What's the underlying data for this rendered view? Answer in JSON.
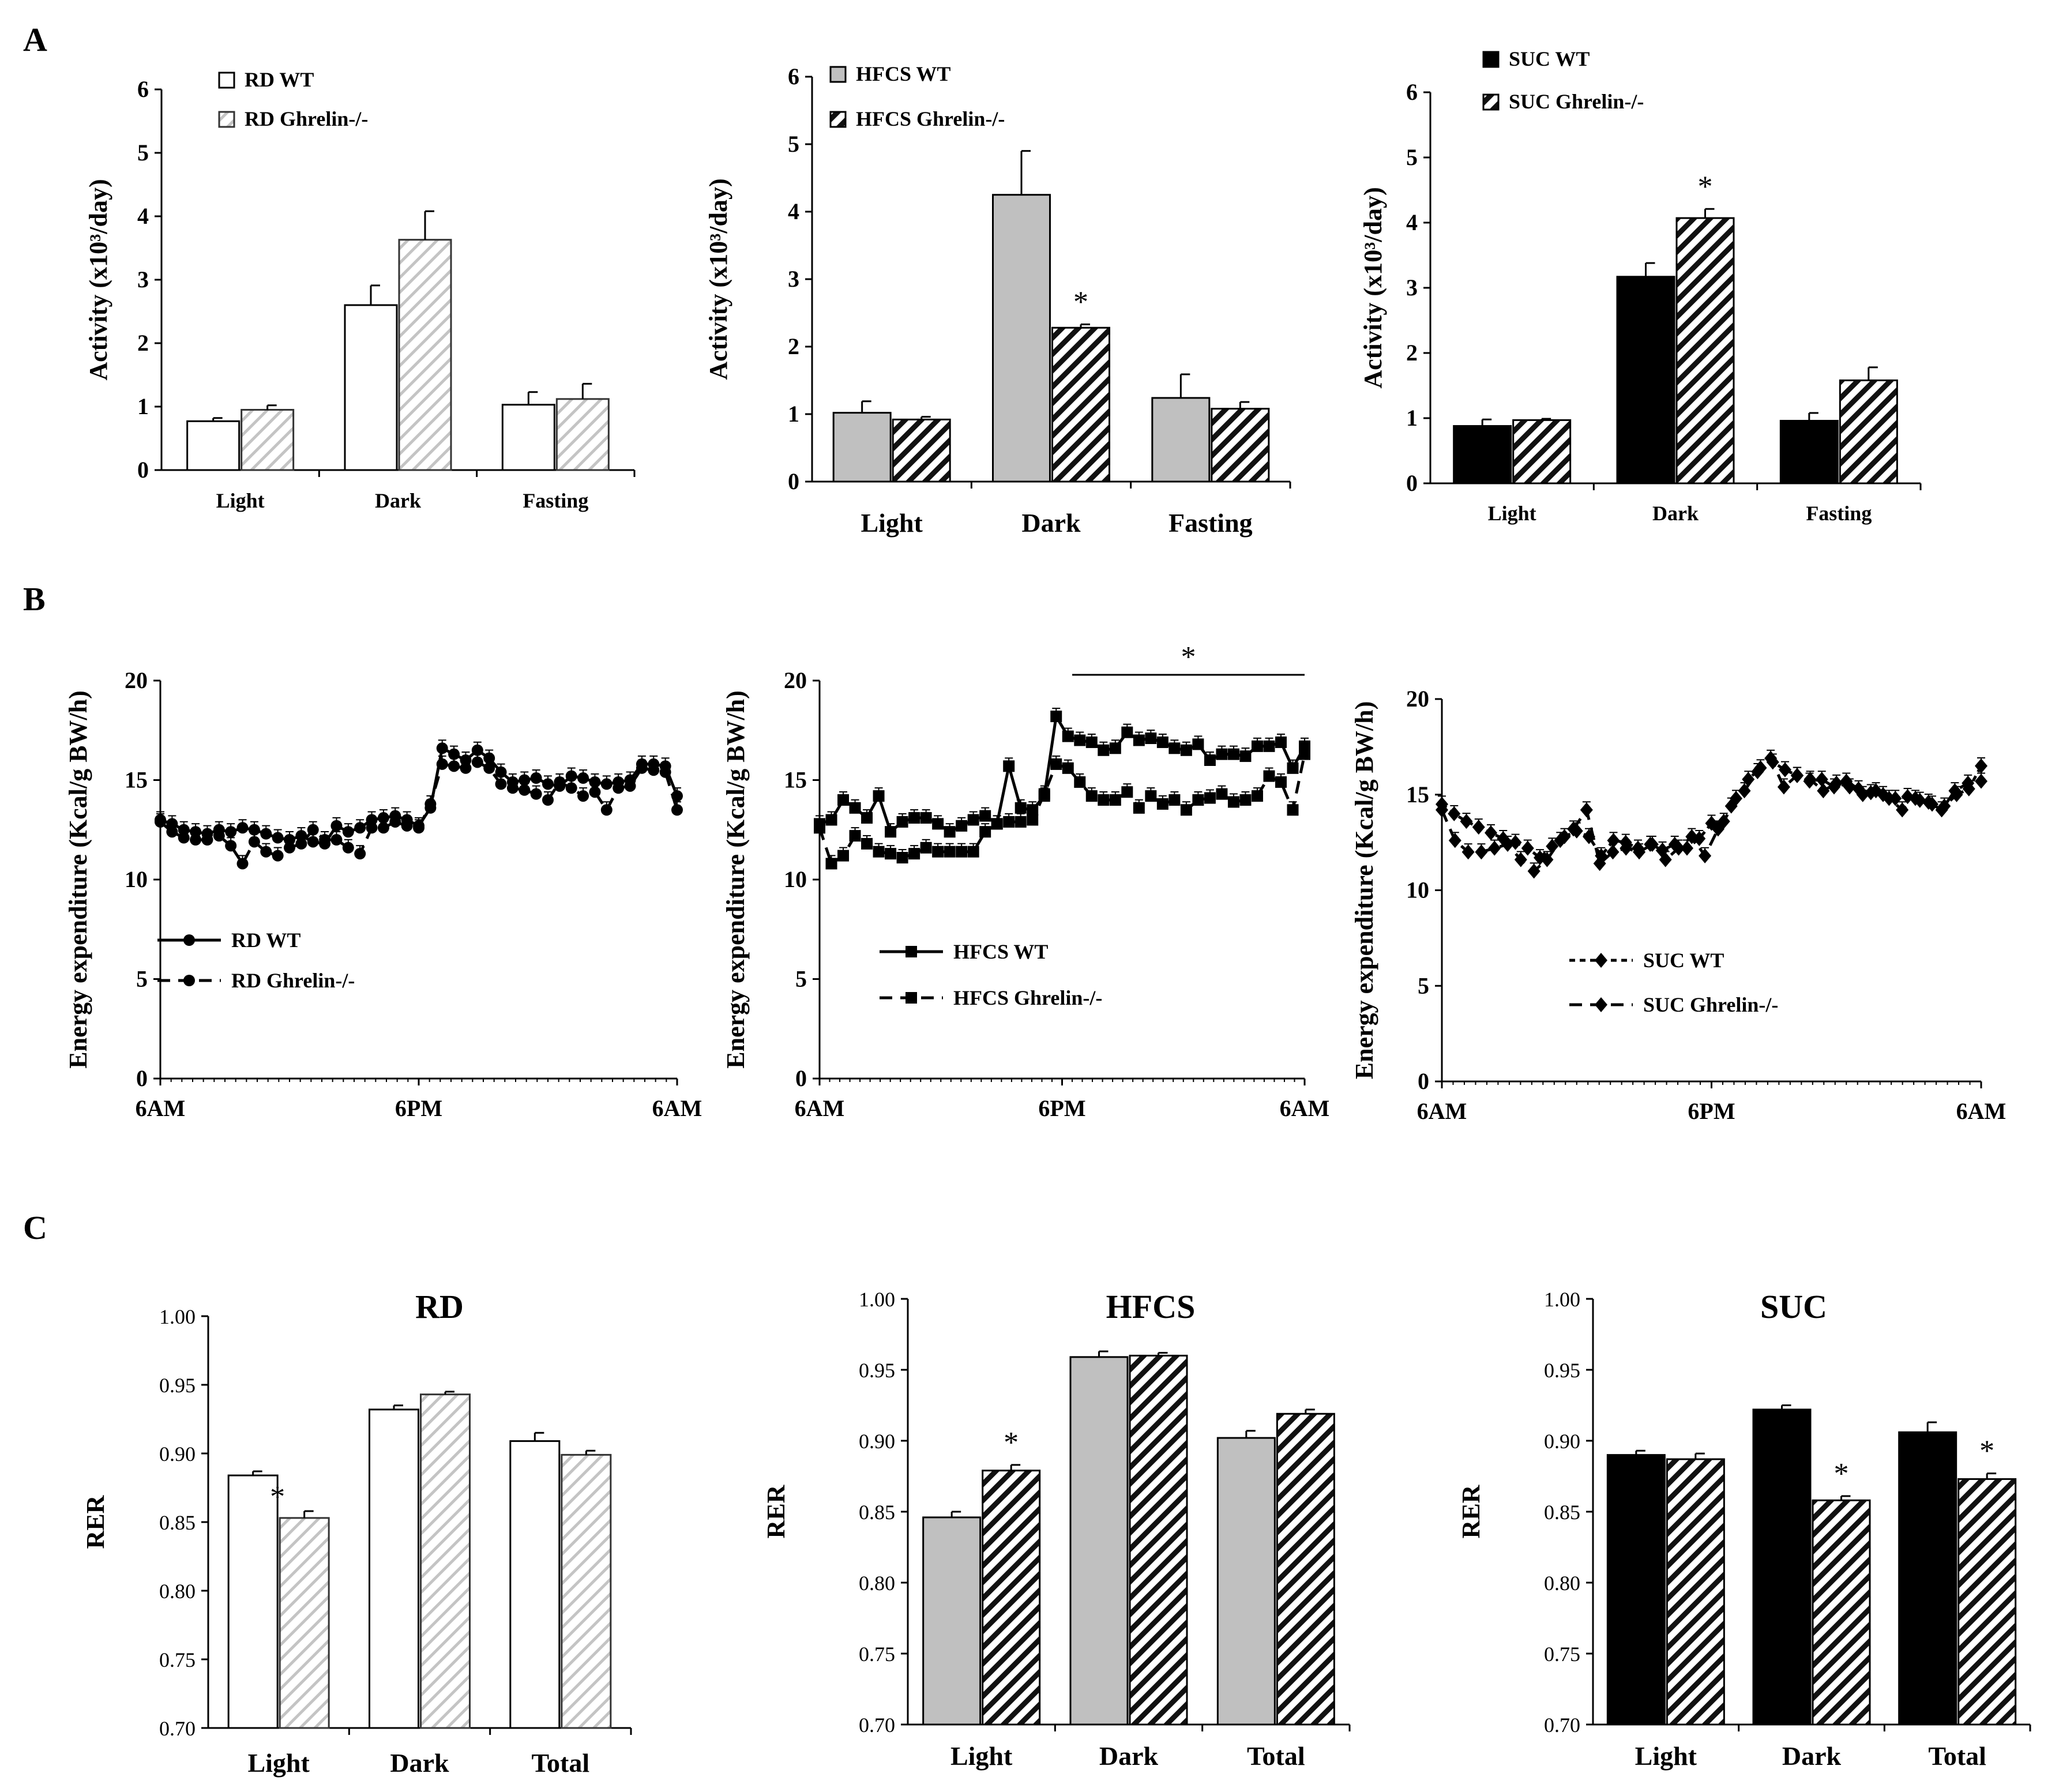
{
  "figure": {
    "panel_letters": [
      "A",
      "B",
      "C"
    ]
  },
  "chart_data": [
    {
      "id": "A1",
      "panel": "A",
      "type": "bar",
      "title": "",
      "xlabel": "",
      "ylabel": "Activity (x10³/day)",
      "ylim": [
        0,
        6
      ],
      "yticks": [
        "0",
        "1",
        "2",
        "3",
        "4",
        "5",
        "6"
      ],
      "categories": [
        "Light",
        "Dark",
        "Fasting"
      ],
      "series": [
        {
          "name": "RD WT",
          "style": "white",
          "values": [
            0.77,
            2.6,
            1.03
          ],
          "errors": [
            0.05,
            0.31,
            0.2
          ]
        },
        {
          "name": "RD Ghrelin-/-",
          "style": "lighthatch",
          "values": [
            0.95,
            3.63,
            1.12
          ],
          "errors": [
            0.07,
            0.45,
            0.24
          ]
        }
      ],
      "significance": [],
      "legend": "top-left"
    },
    {
      "id": "A2",
      "panel": "A",
      "type": "bar",
      "title": "",
      "xlabel": "",
      "ylabel": "Activity (x10³/day)",
      "ylim": [
        0,
        6
      ],
      "yticks": [
        "0",
        "1",
        "2",
        "3",
        "4",
        "5",
        "6"
      ],
      "categories": [
        "Light",
        "Dark",
        "Fasting"
      ],
      "series": [
        {
          "name": "HFCS WT",
          "style": "gray",
          "values": [
            1.02,
            4.25,
            1.24
          ],
          "errors": [
            0.17,
            0.65,
            0.35
          ]
        },
        {
          "name": "HFCS Ghrelin-/-",
          "style": "hatch",
          "values": [
            0.92,
            2.28,
            1.08
          ],
          "errors": [
            0.04,
            0.05,
            0.1
          ]
        }
      ],
      "significance": [
        {
          "category": "Dark",
          "series": 1,
          "mark": "*"
        }
      ],
      "legend": "top-left"
    },
    {
      "id": "A3",
      "panel": "A",
      "type": "bar",
      "title": "",
      "xlabel": "",
      "ylabel": "Activity (x10³/day)",
      "ylim": [
        0,
        6
      ],
      "yticks": [
        "0",
        "1",
        "2",
        "3",
        "4",
        "5",
        "6"
      ],
      "categories": [
        "Light",
        "Dark",
        "Fasting"
      ],
      "series": [
        {
          "name": "SUC WT",
          "style": "black",
          "values": [
            0.88,
            3.17,
            0.96
          ],
          "errors": [
            0.1,
            0.21,
            0.12
          ]
        },
        {
          "name": "SUC Ghrelin-/-",
          "style": "hatch",
          "values": [
            0.97,
            4.07,
            1.58
          ],
          "errors": [
            0.02,
            0.14,
            0.2
          ]
        }
      ],
      "significance": [
        {
          "category": "Dark",
          "series": 1,
          "mark": "*"
        }
      ],
      "legend": "top-left"
    },
    {
      "id": "B1",
      "panel": "B",
      "type": "line",
      "title": "",
      "xlabel": "",
      "ylabel": "Energy expenditure (Kcal/g BW/h)",
      "ylim": [
        0,
        20
      ],
      "yticks": [
        "0",
        "5",
        "10",
        "15",
        "20"
      ],
      "xticks": [
        "6AM",
        "6PM",
        "6AM"
      ],
      "series": [
        {
          "name": "RD WT",
          "marker": "circle",
          "dash": "solid",
          "values": [
            13.0,
            12.8,
            12.5,
            12.4,
            12.3,
            12.5,
            12.4,
            12.6,
            12.5,
            12.3,
            12.1,
            12.0,
            12.2,
            11.9,
            11.8,
            12.7,
            12.4,
            12.6,
            13.0,
            13.1,
            13.2,
            13.0,
            12.7,
            13.6,
            16.6,
            16.3,
            16.0,
            16.5,
            16.1,
            15.4,
            14.9,
            15.0,
            15.1,
            14.8,
            14.7,
            15.2,
            15.1,
            14.9,
            14.8,
            14.9,
            15.0,
            15.8,
            15.8,
            15.7,
            14.2
          ]
        },
        {
          "name": "RD Ghrelin-/-",
          "marker": "circle",
          "dash": "dashed",
          "values": [
            12.9,
            12.4,
            12.1,
            12.0,
            12.0,
            12.2,
            11.7,
            10.8,
            11.9,
            11.4,
            11.2,
            11.6,
            11.8,
            12.5,
            12.0,
            12.0,
            11.6,
            11.3,
            12.6,
            12.6,
            12.9,
            12.7,
            12.6,
            13.8,
            15.8,
            15.7,
            15.6,
            15.9,
            15.6,
            14.8,
            14.6,
            14.5,
            14.3,
            14.0,
            14.9,
            14.6,
            14.2,
            14.4,
            13.5,
            14.6,
            14.7,
            15.6,
            15.5,
            15.4,
            13.5
          ]
        }
      ],
      "significance": [],
      "legend": "bottom-left"
    },
    {
      "id": "B2",
      "panel": "B",
      "type": "line",
      "title": "",
      "xlabel": "",
      "ylabel": "Energy expenditure (Kcal/g BW/h)",
      "ylim": [
        0,
        20
      ],
      "yticks": [
        "0",
        "5",
        "10",
        "15",
        "20"
      ],
      "xticks": [
        "6AM",
        "6PM",
        "6AM"
      ],
      "series": [
        {
          "name": "HFCS WT",
          "marker": "square",
          "dash": "solid",
          "values": [
            12.8,
            13.0,
            14.0,
            13.6,
            13.1,
            14.2,
            12.4,
            12.9,
            13.1,
            13.1,
            12.8,
            12.4,
            12.7,
            13.0,
            13.2,
            12.8,
            15.7,
            13.6,
            13.5,
            14.2,
            18.2,
            17.2,
            17.0,
            16.9,
            16.5,
            16.6,
            17.4,
            17.0,
            17.1,
            16.9,
            16.6,
            16.5,
            16.8,
            16.0,
            16.3,
            16.3,
            16.2,
            16.7,
            16.7,
            16.9,
            15.6,
            16.7
          ]
        },
        {
          "name": "HFCS Ghrelin-/-",
          "marker": "square",
          "dash": "dashed",
          "values": [
            12.6,
            10.8,
            11.2,
            12.2,
            11.8,
            11.4,
            11.3,
            11.1,
            11.3,
            11.6,
            11.4,
            11.4,
            11.4,
            11.4,
            12.4,
            12.8,
            12.9,
            12.9,
            13.0,
            14.3,
            15.8,
            15.6,
            14.9,
            14.2,
            14.0,
            14.0,
            14.4,
            13.6,
            14.2,
            13.8,
            14.0,
            13.5,
            14.0,
            14.1,
            14.3,
            13.9,
            14.0,
            14.2,
            15.2,
            14.9,
            13.5,
            16.3
          ]
        }
      ],
      "significance": [
        {
          "from_hour": 12.5,
          "to_hour": 24,
          "mark": "*"
        }
      ],
      "legend": "bottom-left"
    },
    {
      "id": "B3",
      "panel": "B",
      "type": "line",
      "title": "",
      "xlabel": "",
      "ylabel": "Energy expenditure (Kcal/g BW/h)",
      "ylim": [
        0,
        20
      ],
      "yticks": [
        "0",
        "5",
        "10",
        "15",
        "20"
      ],
      "xticks": [
        "6AM",
        "6PM",
        "6AM"
      ],
      "series": [
        {
          "name": "SUC WT",
          "marker": "diamond",
          "dash": "shortdash",
          "values": [
            14.5,
            14.0,
            13.6,
            13.3,
            13.0,
            12.7,
            12.5,
            12.2,
            11.7,
            12.3,
            12.8,
            13.1,
            12.8,
            11.8,
            12.6,
            12.5,
            12.2,
            12.4,
            12.1,
            12.4,
            12.2,
            12.7,
            13.5,
            13.6,
            14.8,
            15.8,
            16.4,
            16.7,
            16.3,
            16.0,
            15.7,
            15.8,
            15.4,
            15.7,
            15.3,
            15.1,
            15.0,
            14.8,
            14.9,
            14.7,
            14.5,
            14.4,
            15.0,
            15.3,
            16.5
          ]
        },
        {
          "name": "SUC Ghrelin-/-",
          "marker": "diamond",
          "dash": "dashed",
          "values": [
            14.2,
            12.6,
            12.0,
            12.0,
            12.2,
            12.4,
            11.6,
            11.0,
            11.6,
            12.6,
            13.2,
            14.2,
            11.4,
            12.0,
            12.2,
            12.0,
            12.4,
            11.6,
            12.2,
            12.8,
            11.8,
            13.2,
            14.4,
            15.2,
            16.2,
            16.9,
            15.4,
            16.0,
            15.8,
            15.2,
            15.6,
            15.4,
            15.0,
            15.2,
            14.8,
            14.2,
            14.8,
            14.6,
            14.2,
            15.2,
            15.6,
            15.7
          ]
        }
      ],
      "significance": [],
      "legend": "bottom-left"
    },
    {
      "id": "C1",
      "panel": "C",
      "type": "bar",
      "title": "RD",
      "xlabel": "",
      "ylabel": "RER",
      "ylim": [
        0.7,
        1.0
      ],
      "yticks": [
        "0.70",
        "0.75",
        "0.80",
        "0.85",
        "0.90",
        "0.95",
        "1.00"
      ],
      "categories": [
        "Light",
        "Dark",
        "Total"
      ],
      "series": [
        {
          "name": "RD WT",
          "style": "white",
          "values": [
            0.884,
            0.932,
            0.909
          ],
          "errors": [
            0.003,
            0.003,
            0.006
          ]
        },
        {
          "name": "RD Ghrelin-/-",
          "style": "lighthatch",
          "values": [
            0.853,
            0.943,
            0.899
          ],
          "errors": [
            0.005,
            0.002,
            0.003
          ]
        }
      ],
      "significance": [
        {
          "category": "Light",
          "series": 1,
          "mark": "*"
        }
      ]
    },
    {
      "id": "C2",
      "panel": "C",
      "type": "bar",
      "title": "HFCS",
      "xlabel": "",
      "ylabel": "RER",
      "ylim": [
        0.7,
        1.0
      ],
      "yticks": [
        "0.70",
        "0.75",
        "0.80",
        "0.85",
        "0.90",
        "0.95",
        "1.00"
      ],
      "categories": [
        "Light",
        "Dark",
        "Total"
      ],
      "series": [
        {
          "name": "HFCS WT",
          "style": "gray",
          "values": [
            0.846,
            0.959,
            0.902
          ],
          "errors": [
            0.004,
            0.004,
            0.005
          ]
        },
        {
          "name": "HFCS Ghrelin-/-",
          "style": "hatch",
          "values": [
            0.879,
            0.96,
            0.919
          ],
          "errors": [
            0.004,
            0.002,
            0.003
          ]
        }
      ],
      "significance": [
        {
          "category": "Light",
          "series": 1,
          "mark": "*"
        }
      ]
    },
    {
      "id": "C3",
      "panel": "C",
      "type": "bar",
      "title": "SUC",
      "xlabel": "",
      "ylabel": "RER",
      "ylim": [
        0.7,
        1.0
      ],
      "yticks": [
        "0.70",
        "0.75",
        "0.80",
        "0.85",
        "0.90",
        "0.95",
        "1.00"
      ],
      "categories": [
        "Light",
        "Dark",
        "Total"
      ],
      "series": [
        {
          "name": "SUC WT",
          "style": "black",
          "values": [
            0.89,
            0.922,
            0.906
          ],
          "errors": [
            0.003,
            0.003,
            0.007
          ]
        },
        {
          "name": "SUC Ghrelin-/-",
          "style": "hatch",
          "values": [
            0.887,
            0.858,
            0.873
          ],
          "errors": [
            0.004,
            0.003,
            0.004
          ]
        }
      ],
      "significance": [
        {
          "category": "Dark",
          "series": 1,
          "mark": "*"
        },
        {
          "category": "Total",
          "series": 1,
          "mark": "*"
        }
      ]
    }
  ]
}
